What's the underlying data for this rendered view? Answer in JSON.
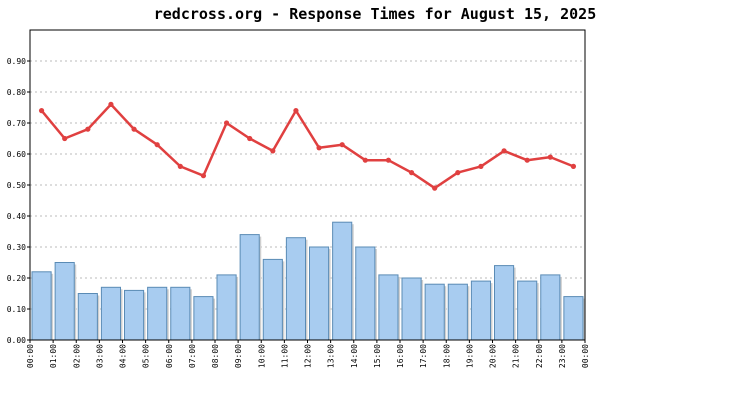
{
  "chart_data": {
    "type": "bar+line",
    "title": "redcross.org - Response Times for August 15, 2025",
    "xlabel": "",
    "ylabel": "",
    "ylim": [
      0,
      1.0
    ],
    "yticks": [
      "0.00",
      "0.10",
      "0.20",
      "0.30",
      "0.40",
      "0.50",
      "0.60",
      "0.70",
      "0.80",
      "0.90"
    ],
    "x_tick_labels": [
      "00:00",
      "01:00",
      "02:00",
      "03:00",
      "04:00",
      "05:00",
      "06:00",
      "07:00",
      "08:00",
      "09:00",
      "10:00",
      "11:00",
      "12:00",
      "13:00",
      "14:00",
      "15:00",
      "16:00",
      "17:00",
      "18:00",
      "19:00",
      "20:00",
      "21:00",
      "22:00",
      "23:00",
      "00:00"
    ],
    "grid": "horizontal dotted",
    "series": [
      {
        "kind": "bar",
        "color": "#a8ccf0",
        "values": [
          0.22,
          0.25,
          0.15,
          0.17,
          0.16,
          0.17,
          0.17,
          0.14,
          0.21,
          0.34,
          0.26,
          0.33,
          0.3,
          0.38,
          0.3,
          0.21,
          0.2,
          0.18,
          0.18,
          0.19,
          0.24,
          0.19,
          0.21,
          0.14
        ]
      },
      {
        "kind": "line",
        "color": "#e04040",
        "values": [
          0.74,
          0.65,
          0.68,
          0.76,
          0.68,
          0.63,
          0.56,
          0.53,
          0.7,
          0.65,
          0.61,
          0.74,
          0.62,
          0.63,
          0.58,
          0.58,
          0.54,
          0.49,
          0.54,
          0.56,
          0.61,
          0.58,
          0.59,
          0.56
        ]
      }
    ]
  }
}
